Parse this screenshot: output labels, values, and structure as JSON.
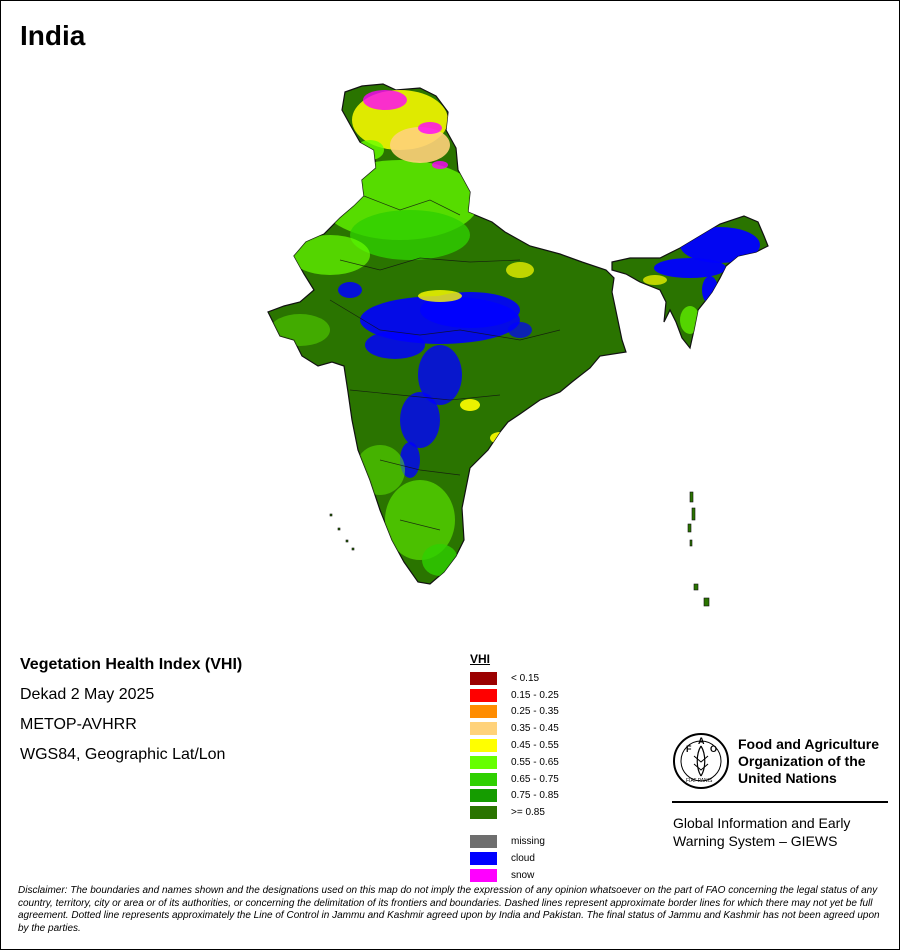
{
  "map_title": "India",
  "product": {
    "name": "Vegetation Health Index (VHI)",
    "period": "Dekad 2 May 2025",
    "sensor": "METOP-AVHRR",
    "projection": "WGS84, Geographic Lat/Lon"
  },
  "legend": {
    "title": "VHI",
    "classes": [
      {
        "label": "< 0.15",
        "color": "#9b0000"
      },
      {
        "label": "0.15 - 0.25",
        "color": "#ff0000"
      },
      {
        "label": "0.25 - 0.35",
        "color": "#ff8c00"
      },
      {
        "label": "0.35 - 0.45",
        "color": "#ffd27a"
      },
      {
        "label": "0.45 - 0.55",
        "color": "#ffff00"
      },
      {
        "label": "0.55 - 0.65",
        "color": "#66ff00"
      },
      {
        "label": "0.65 - 0.75",
        "color": "#2fd000"
      },
      {
        "label": "0.75 - 0.85",
        "color": "#159c00"
      },
      {
        "label": ">= 0.85",
        "color": "#2a7400"
      }
    ],
    "extras": [
      {
        "label": "missing",
        "color": "#6e6e6e"
      },
      {
        "label": "cloud",
        "color": "#0000ff"
      },
      {
        "label": "snow",
        "color": "#ff00ff"
      }
    ]
  },
  "organization": {
    "logo_text": "FAO",
    "logo_motto": "FIAT PANIS",
    "name_lines": [
      "Food and Agriculture",
      "Organization of the",
      "United Nations"
    ],
    "program_lines": [
      "Global Information and Early",
      "Warning System – GIEWS"
    ]
  },
  "disclaimer": "Disclaimer: The boundaries and names shown and the designations used on this map do not imply the expression of any opinion whatsoever on the part of FAO concerning the legal status of any country, territory, city or area or of its authorities, or concerning the delimitation of its frontiers and boundaries. Dashed lines represent approximate border lines for which there may not yet be full agreement. Dotted line represents approximately the Line of Control in Jammu and Kashmir agreed upon by India and Pakistan. The final status of Jammu and Kashmir has not been agreed upon by the parties."
}
